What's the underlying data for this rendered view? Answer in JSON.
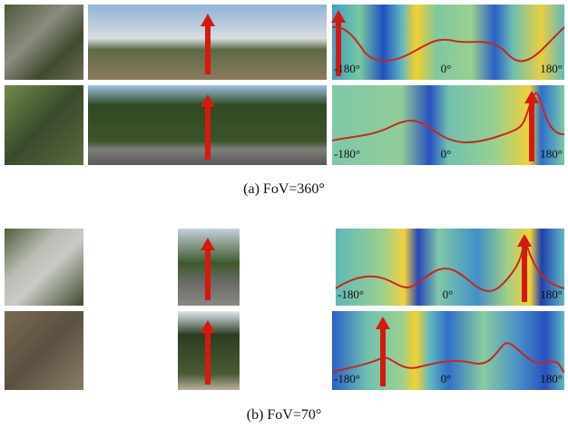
{
  "sections": [
    {
      "caption": "(a) FoV=360°",
      "rows": [
        {
          "tick_labels": [
            "-180°",
            "0°",
            "180°"
          ]
        },
        {
          "tick_labels": [
            "-180°",
            "0°",
            "180°"
          ]
        }
      ]
    },
    {
      "caption": "(b) FoV=70°",
      "rows": [
        {
          "tick_labels": [
            "-180°",
            "0°",
            "180°"
          ]
        },
        {
          "tick_labels": [
            "-180°",
            "0°",
            "180°"
          ]
        }
      ]
    }
  ]
}
